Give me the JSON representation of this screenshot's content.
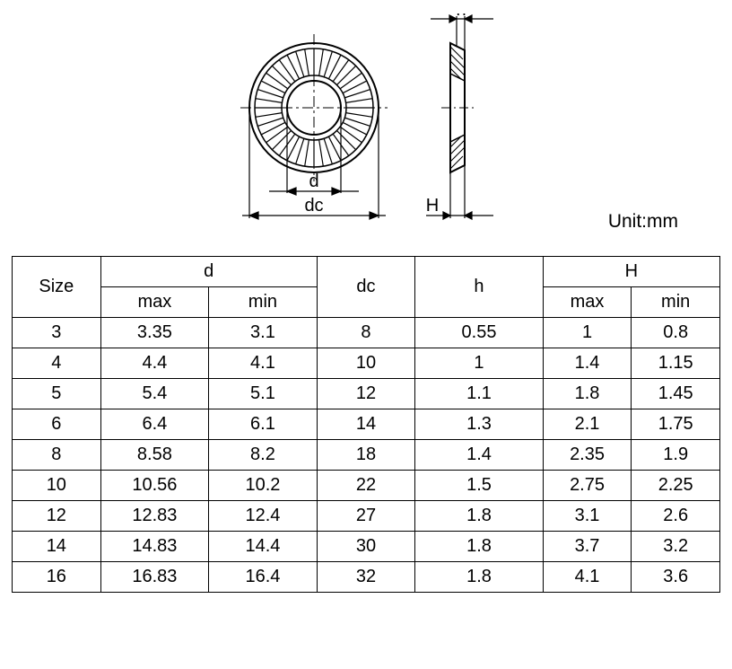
{
  "diagram": {
    "frontView": {
      "outerRadius": 72,
      "innerRadius": 36,
      "boreRadius": 30,
      "numTeeth": 40,
      "strokeColor": "#000000",
      "centerlineColor": "#000000"
    },
    "sideView": {
      "width": 16,
      "height": 144
    },
    "dimensionLabels": {
      "d": "d",
      "dc": "dc",
      "H": "H",
      "h": "h"
    }
  },
  "unitLabel": "Unit:mm",
  "table": {
    "headers": {
      "size": "Size",
      "d": "d",
      "d_max": "max",
      "d_min": "min",
      "dc": "dc",
      "h": "h",
      "H": "H",
      "H_max": "max",
      "H_min": "min"
    },
    "rows": [
      {
        "size": "3",
        "d_max": "3.35",
        "d_min": "3.1",
        "dc": "8",
        "h": "0.55",
        "H_max": "1",
        "H_min": "0.8"
      },
      {
        "size": "4",
        "d_max": "4.4",
        "d_min": "4.1",
        "dc": "10",
        "h": "1",
        "H_max": "1.4",
        "H_min": "1.15"
      },
      {
        "size": "5",
        "d_max": "5.4",
        "d_min": "5.1",
        "dc": "12",
        "h": "1.1",
        "H_max": "1.8",
        "H_min": "1.45"
      },
      {
        "size": "6",
        "d_max": "6.4",
        "d_min": "6.1",
        "dc": "14",
        "h": "1.3",
        "H_max": "2.1",
        "H_min": "1.75"
      },
      {
        "size": "8",
        "d_max": "8.58",
        "d_min": "8.2",
        "dc": "18",
        "h": "1.4",
        "H_max": "2.35",
        "H_min": "1.9"
      },
      {
        "size": "10",
        "d_max": "10.56",
        "d_min": "10.2",
        "dc": "22",
        "h": "1.5",
        "H_max": "2.75",
        "H_min": "2.25"
      },
      {
        "size": "12",
        "d_max": "12.83",
        "d_min": "12.4",
        "dc": "27",
        "h": "1.8",
        "H_max": "3.1",
        "H_min": "2.6"
      },
      {
        "size": "14",
        "d_max": "14.83",
        "d_min": "14.4",
        "dc": "30",
        "h": "1.8",
        "H_max": "3.7",
        "H_min": "3.2"
      },
      {
        "size": "16",
        "d_max": "16.83",
        "d_min": "16.4",
        "dc": "32",
        "h": "1.8",
        "H_max": "4.1",
        "H_min": "3.6"
      }
    ]
  },
  "styling": {
    "backgroundColor": "#ffffff",
    "textColor": "#000000",
    "borderColor": "#000000",
    "fontSize": 20,
    "headerFontSize": 20,
    "tableBorderWidth": 1.5,
    "cellPadding": 5
  }
}
